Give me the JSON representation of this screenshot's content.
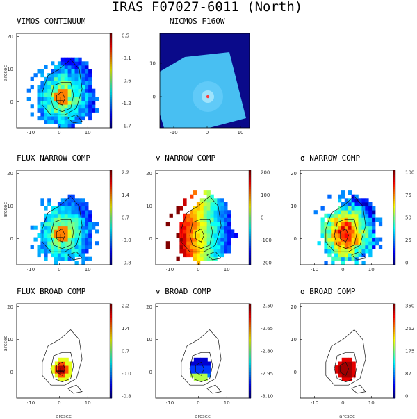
{
  "title": "IRAS F07027-6011 (North)",
  "chart_data": [
    {
      "type": "heatmap",
      "title": "VIMOS CONTINUUM",
      "xticks": [
        "-10",
        "0",
        "10"
      ],
      "yticks": [
        "20",
        "10",
        "0"
      ],
      "ylabel": "arcsec",
      "colorbar": [
        "0.5",
        "-0.1",
        "-0.6",
        "-1.2",
        "-1.7"
      ],
      "peak": "cyan",
      "marker": "+",
      "contours": true,
      "footprint": "blob-big"
    },
    {
      "type": "heatmap",
      "title": "NICMOS F160W",
      "xticks": [
        "-10",
        "0",
        "10"
      ],
      "yticks": [
        "10",
        "0"
      ],
      "background": "#0a0a8a",
      "marker": "dot",
      "footprint": "nicmos"
    },
    {
      "type": "heatmap",
      "title": "FLUX NARROW COMP",
      "xticks": [
        "-10",
        "0",
        "10"
      ],
      "yticks": [
        "20",
        "10",
        "0"
      ],
      "ylabel": "arcsec",
      "colorbar": [
        "2.2",
        "1.4",
        "0.7",
        "-0.0",
        "-0.8"
      ],
      "peak": "cyan",
      "marker": "+",
      "contours": true,
      "footprint": "blob"
    },
    {
      "type": "heatmap",
      "title": "v NARROW COMP",
      "xticks": [
        "-10",
        "0",
        "10"
      ],
      "yticks": [
        "20",
        "10",
        "0"
      ],
      "colorbar": [
        "200",
        "100",
        "0",
        "-100",
        "-200"
      ],
      "gradient": "velocity",
      "contours": true,
      "footprint": "blob"
    },
    {
      "type": "heatmap",
      "title": "σ NARROW COMP",
      "xticks": [
        "-10",
        "0",
        "10"
      ],
      "yticks": [
        "20",
        "10",
        "0"
      ],
      "colorbar": [
        "100",
        "75",
        "50",
        "25",
        "0"
      ],
      "peak": "red",
      "contours": true,
      "footprint": "blob"
    },
    {
      "type": "heatmap",
      "title": "FLUX BROAD COMP",
      "xticks": [
        "-10",
        "0",
        "10"
      ],
      "yticks": [
        "20",
        "10",
        "0"
      ],
      "ylabel": "arcsec",
      "xlabel": "arcsec",
      "colorbar": [
        "2.2",
        "1.4",
        "0.7",
        "-0.0",
        "-0.8"
      ],
      "marker": "+",
      "contours": true,
      "footprint": "core-flux"
    },
    {
      "type": "heatmap",
      "title": "v BROAD COMP",
      "xticks": [
        "-10",
        "0",
        "10"
      ],
      "yticks": [
        "20",
        "10",
        "0"
      ],
      "xlabel": "arcsec",
      "colorbar": [
        "-2.50",
        "-2.65",
        "-2.80",
        "-2.95",
        "-3.10"
      ],
      "contours": true,
      "footprint": "core-vel"
    },
    {
      "type": "heatmap",
      "title": "σ BROAD COMP",
      "xticks": [
        "-10",
        "0",
        "10"
      ],
      "yticks": [
        "20",
        "10",
        "0"
      ],
      "xlabel": "arcsec",
      "colorbar": [
        "350",
        "262",
        "175",
        "87",
        "0"
      ],
      "contours": true,
      "footprint": "core-sig"
    }
  ]
}
